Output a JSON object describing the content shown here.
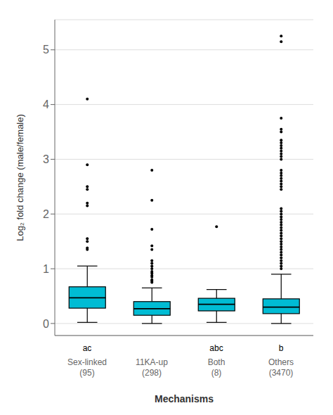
{
  "chart_data": {
    "type": "box",
    "categories": [
      "Sex-linked\n(95)",
      "11KA-up\n(298)",
      "Both\n(8)",
      "Others\n(3470)"
    ],
    "sig_labels": [
      "ac",
      null,
      "abc",
      "b"
    ],
    "color": "#00BCD4",
    "ylabel": "Log₂ fold change (male/female)",
    "xlabel": "Mechanisms",
    "ylim": [
      -0.22,
      5.55
    ],
    "yticks": [
      0,
      1,
      2,
      3,
      4,
      5
    ],
    "grid": true,
    "boxes": [
      {
        "q1": 0.28,
        "median": 0.47,
        "q3": 0.67,
        "whisker_low": 0.02,
        "whisker_high": 1.05,
        "outliers": [
          1.35,
          1.38,
          1.5,
          1.55,
          2.15,
          2.2,
          2.45,
          2.5,
          2.9,
          4.1
        ]
      },
      {
        "q1": 0.15,
        "median": 0.27,
        "q3": 0.4,
        "whisker_low": 0.0,
        "whisker_high": 0.65,
        "outliers": [
          0.75,
          0.78,
          0.8,
          0.85,
          0.88,
          0.92,
          0.95,
          1.0,
          1.05,
          1.1,
          1.15,
          1.35,
          1.42,
          1.72,
          2.25,
          2.8
        ]
      },
      {
        "q1": 0.23,
        "median": 0.35,
        "q3": 0.46,
        "whisker_low": 0.02,
        "whisker_high": 0.62,
        "outliers": [
          1.77
        ]
      },
      {
        "q1": 0.18,
        "median": 0.3,
        "q3": 0.45,
        "whisker_low": 0.0,
        "whisker_high": 0.9,
        "outliers": [
          1.0,
          1.05,
          1.1,
          1.15,
          1.2,
          1.25,
          1.3,
          1.35,
          1.4,
          1.45,
          1.5,
          1.55,
          1.6,
          1.65,
          1.7,
          1.75,
          1.8,
          1.85,
          1.9,
          1.95,
          2.0,
          2.05,
          2.1,
          2.45,
          2.5,
          2.55,
          2.6,
          2.65,
          2.7,
          2.75,
          2.8,
          3.0,
          3.05,
          3.1,
          3.15,
          3.2,
          3.25,
          3.3,
          3.35,
          3.5,
          3.55,
          3.75,
          5.15,
          5.25
        ]
      }
    ]
  }
}
